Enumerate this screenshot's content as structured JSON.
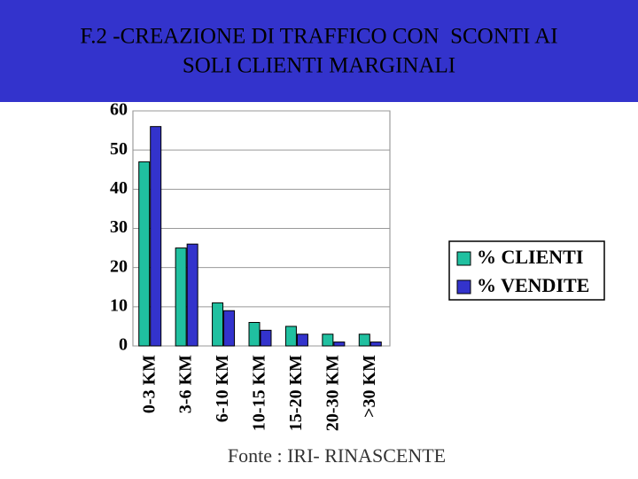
{
  "chart_data": {
    "type": "bar",
    "title": [
      "F.2 -CREAZIONE DI TRAFFICO CON  SCONTI AI",
      "SOLI CLIENTI MARGINALI"
    ],
    "categories": [
      "0-3 KM",
      "3-6 KM",
      "6-10 KM",
      "10-15 KM",
      "15-20 KM",
      "20-30 KM",
      ">30 KM"
    ],
    "series": [
      {
        "name": "% CLIENTI",
        "color": "#20c0a0",
        "values": [
          47,
          25,
          11,
          6,
          5,
          3,
          3
        ]
      },
      {
        "name": "% VENDITE",
        "color": "#3333cc",
        "values": [
          56,
          26,
          9,
          4,
          3,
          1,
          1
        ]
      }
    ],
    "ylim": [
      0,
      60
    ],
    "yticks": [
      0,
      10,
      20,
      30,
      40,
      50,
      60
    ],
    "grid": true,
    "legend": "right",
    "source": "Fonte : IRI- RINASCENTE"
  }
}
